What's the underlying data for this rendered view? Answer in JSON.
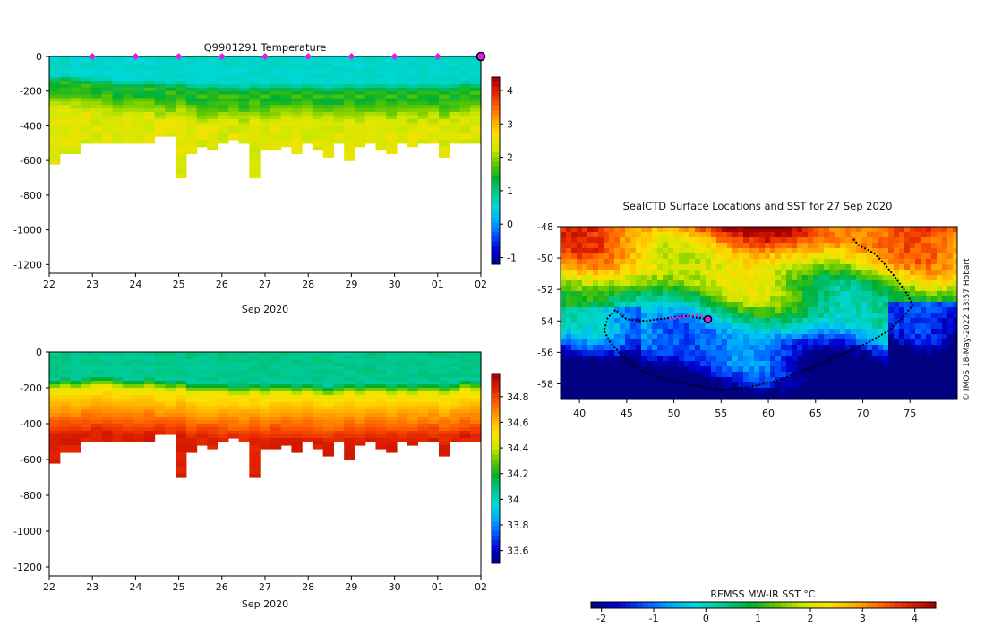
{
  "colors": {
    "pink_marker": "#e020e0",
    "track": "#000000",
    "frame": "#000000",
    "cbar_stops": [
      "#000080",
      "#0000d0",
      "#0050ff",
      "#00a8ff",
      "#00d8d8",
      "#00c890",
      "#00b030",
      "#60c800",
      "#d0e800",
      "#ffe000",
      "#ffa800",
      "#ff6000",
      "#e02000",
      "#a00000"
    ]
  },
  "chart_data": [
    {
      "id": "temperature",
      "type": "heatmap",
      "title": "Q9901291  Temperature",
      "xlabel": "Sep 2020",
      "x_tick_labels": [
        "22",
        "23",
        "24",
        "25",
        "26",
        "27",
        "28",
        "29",
        "30",
        "01",
        "02"
      ],
      "ylim": [
        -1250,
        0
      ],
      "y_ticks": [
        0,
        -200,
        -400,
        -600,
        -800,
        -1000,
        -1200
      ],
      "y_tick_labels": [
        "0",
        "-200",
        "-400",
        "-600",
        "-800",
        "-1000",
        "-1200"
      ],
      "colorbar": {
        "min": -1.2,
        "max": 4.4,
        "ticks": [
          -1,
          0,
          1,
          2,
          3,
          4
        ],
        "tick_labels": [
          "-1",
          "0",
          "1",
          "2",
          "3",
          "4"
        ]
      },
      "profile_max_depth": [
        610,
        560,
        550,
        500,
        500,
        500,
        500,
        500,
        500,
        490,
        460,
        460,
        700,
        560,
        520,
        540,
        500,
        480,
        500,
        700,
        530,
        530,
        520,
        550,
        500,
        540,
        570,
        500,
        590,
        520,
        500,
        530,
        560,
        500,
        520,
        490,
        500,
        570,
        500,
        500,
        500
      ],
      "surface_temp": 0.5,
      "thermocline_top": [
        -160,
        -150,
        -160,
        -170,
        -180,
        -180,
        -200,
        -200,
        -200,
        -190,
        -200,
        -210,
        -200,
        -220,
        -230,
        -220,
        -230,
        -230,
        -240,
        -220,
        -230,
        -220,
        -220,
        -230,
        -220,
        -230,
        -240,
        -230,
        -220,
        -230,
        -220,
        -220,
        -230,
        -220,
        -230,
        -220,
        -220,
        -230,
        -220,
        -200,
        -210
      ],
      "deep_temp": 2.2,
      "surface_markers_day": [
        23,
        24,
        25,
        26,
        27,
        28,
        29,
        30,
        31
      ],
      "last_profile_marker_day": 32
    },
    {
      "id": "salinity",
      "type": "heatmap",
      "title": "",
      "xlabel": "Sep 2020",
      "x_tick_labels": [
        "22",
        "23",
        "24",
        "25",
        "26",
        "27",
        "28",
        "29",
        "30",
        "01",
        "02"
      ],
      "ylim": [
        -1250,
        0
      ],
      "y_ticks": [
        0,
        -200,
        -400,
        -600,
        -800,
        -1000,
        -1200
      ],
      "y_tick_labels": [
        "0",
        "-200",
        "-400",
        "-600",
        "-800",
        "-1000",
        "-1200"
      ],
      "colorbar": {
        "min": 33.5,
        "max": 34.98,
        "ticks": [
          33.6,
          33.8,
          34,
          34.2,
          34.4,
          34.6,
          34.8
        ],
        "tick_labels": [
          "33.6",
          "33.8",
          "34",
          "34.2",
          "34.4",
          "34.6",
          "34.8"
        ]
      },
      "surface_sal": 34.05,
      "halocline_top": [
        -200,
        -190,
        -200,
        -190,
        -180,
        -180,
        -190,
        -200,
        -200,
        -190,
        -200,
        -210,
        -200,
        -220,
        -220,
        -220,
        -220,
        -230,
        -230,
        -220,
        -230,
        -220,
        -220,
        -230,
        -220,
        -230,
        -240,
        -230,
        -220,
        -230,
        -220,
        -220,
        -230,
        -220,
        -230,
        -220,
        -220,
        -230,
        -220,
        -200,
        -210
      ],
      "deep_sal": 34.7
    },
    {
      "id": "sst_map",
      "type": "heatmap",
      "title": "SealCTD Surface Locations and SST for 27 Sep 2020",
      "x_range": [
        38,
        80
      ],
      "y_range": [
        -59,
        -48
      ],
      "x_ticks": [
        40,
        45,
        50,
        55,
        60,
        65,
        70,
        75
      ],
      "x_tick_labels": [
        "40",
        "45",
        "50",
        "55",
        "60",
        "65",
        "70",
        "75"
      ],
      "y_ticks": [
        -48,
        -50,
        -52,
        -54,
        -56,
        -58
      ],
      "y_tick_labels": [
        "-48",
        "-50",
        "-52",
        "-54",
        "-56",
        "-58"
      ],
      "colorbar_label": "REMSS MW-IR SST °C",
      "colorbar": {
        "min": -2.2,
        "max": 4.4,
        "ticks": [
          -2,
          -1,
          0,
          1,
          2,
          3,
          4
        ],
        "tick_labels": [
          "-2",
          "-1",
          "0",
          "1",
          "2",
          "3",
          "4"
        ]
      },
      "watermark": "© IMOS 18-May-2022 13:57 Hobart",
      "track": [
        [
          69.0,
          -48.8
        ],
        [
          69.6,
          -49.2
        ],
        [
          70.3,
          -49.4
        ],
        [
          71.2,
          -49.7
        ],
        [
          72.2,
          -50.3
        ],
        [
          73.4,
          -51.2
        ],
        [
          74.6,
          -52.2
        ],
        [
          75.3,
          -53.0
        ],
        [
          74.2,
          -53.8
        ],
        [
          72.8,
          -54.6
        ],
        [
          70.5,
          -55.4
        ],
        [
          67.5,
          -56.2
        ],
        [
          64.5,
          -57.0
        ],
        [
          61.0,
          -57.8
        ],
        [
          58.0,
          -58.2
        ],
        [
          55.0,
          -58.4
        ],
        [
          52.0,
          -58.1
        ],
        [
          49.0,
          -57.7
        ],
        [
          46.5,
          -57.2
        ],
        [
          44.5,
          -56.2
        ],
        [
          43.2,
          -55.3
        ],
        [
          42.6,
          -54.6
        ],
        [
          43.0,
          -53.8
        ],
        [
          43.8,
          -53.3
        ],
        [
          45.0,
          -53.9
        ],
        [
          47.0,
          -54.0
        ],
        [
          49.5,
          -53.8
        ],
        [
          51.5,
          -53.7
        ],
        [
          53.6,
          -53.9
        ]
      ],
      "recent_track": [
        [
          49.5,
          -53.9
        ],
        [
          50.5,
          -53.8
        ],
        [
          51.5,
          -53.7
        ],
        [
          52.5,
          -53.6
        ],
        [
          53.2,
          -53.8
        ]
      ],
      "current_position": [
        53.6,
        -53.9
      ]
    }
  ]
}
